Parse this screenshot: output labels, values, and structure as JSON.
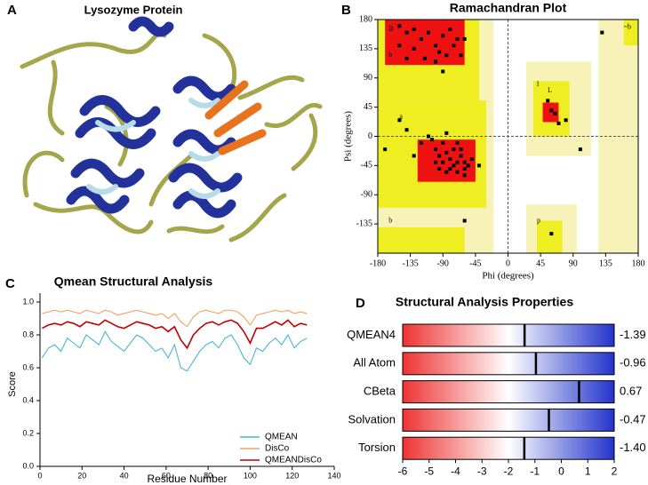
{
  "panel_labels": [
    "A",
    "B",
    "C",
    "D"
  ],
  "image_title": "Lysozyme Protein",
  "chart_data": [
    {
      "type": "scatter",
      "title": "Ramachandran Plot",
      "xlabel": "Phi (degrees)",
      "ylabel": "Psi (degrees)",
      "xlim": [
        -180,
        180
      ],
      "ylim": [
        -180,
        180
      ],
      "xticks": [
        -180,
        -135,
        -90,
        -45,
        0,
        45,
        90,
        135,
        180
      ],
      "yticks": [
        -135,
        -90,
        -45,
        0,
        45,
        90,
        135,
        180
      ],
      "region_labels": [
        "B",
        "b",
        "a",
        "L",
        "l",
        "p",
        "b",
        "~b"
      ],
      "color": "#000000",
      "x": [
        -150,
        -140,
        -130,
        -120,
        -110,
        -100,
        -95,
        -90,
        -85,
        -80,
        -75,
        -70,
        -65,
        -130,
        -115,
        -150,
        -100,
        -60,
        -90,
        -140,
        -100,
        -95,
        -90,
        -85,
        -80,
        -75,
        -70,
        -65,
        -60,
        -90,
        -105,
        -110,
        -80,
        -70,
        -60,
        -55,
        -65,
        -75,
        -85,
        -95,
        -100,
        -120,
        -50,
        -60,
        -70,
        -85,
        -130,
        -140,
        -150,
        -40,
        60,
        65,
        70,
        80,
        55,
        100,
        -170,
        -60,
        60,
        130
      ],
      "y": [
        170,
        160,
        165,
        150,
        160,
        140,
        130,
        155,
        125,
        165,
        140,
        150,
        125,
        135,
        120,
        140,
        115,
        150,
        100,
        120,
        -20,
        -30,
        -40,
        -25,
        -35,
        -45,
        -40,
        -30,
        -40,
        -10,
        -5,
        0,
        -50,
        -55,
        -50,
        -45,
        -20,
        -20,
        -55,
        -50,
        -40,
        -10,
        -35,
        -60,
        -10,
        5,
        -30,
        10,
        25,
        -45,
        40,
        35,
        20,
        25,
        55,
        -20,
        -20,
        -130,
        -150,
        160
      ]
    },
    {
      "type": "line",
      "title": "Qmean  Structural Analysis",
      "xlabel": "Residue Number",
      "ylabel": "Score",
      "xlim": [
        0,
        140
      ],
      "ylim": [
        0,
        1
      ],
      "xticks": [
        0,
        20,
        40,
        60,
        80,
        100,
        120,
        140
      ],
      "yticks": [
        {
          "value": 0,
          "label": "0.0"
        },
        0.2,
        0.4,
        0.6,
        0.8,
        {
          "value": 1,
          "label": "1.0"
        }
      ],
      "x": [
        1,
        4,
        7,
        10,
        13,
        16,
        19,
        22,
        25,
        28,
        31,
        34,
        37,
        40,
        43,
        46,
        49,
        52,
        55,
        58,
        61,
        64,
        67,
        70,
        73,
        76,
        79,
        82,
        85,
        88,
        91,
        94,
        97,
        100,
        103,
        106,
        109,
        112,
        115,
        118,
        121,
        124,
        127
      ],
      "series": [
        {
          "name": "QMEAN",
          "color": "#4bb5d6",
          "values": [
            0.66,
            0.72,
            0.74,
            0.7,
            0.78,
            0.75,
            0.72,
            0.8,
            0.77,
            0.74,
            0.82,
            0.76,
            0.73,
            0.7,
            0.75,
            0.8,
            0.78,
            0.74,
            0.7,
            0.72,
            0.66,
            0.74,
            0.6,
            0.58,
            0.64,
            0.7,
            0.74,
            0.76,
            0.72,
            0.78,
            0.8,
            0.74,
            0.66,
            0.62,
            0.72,
            0.7,
            0.75,
            0.78,
            0.74,
            0.8,
            0.72,
            0.76,
            0.78
          ]
        },
        {
          "name": "DisCo",
          "color": "#f2a25a",
          "values": [
            0.93,
            0.94,
            0.95,
            0.94,
            0.95,
            0.94,
            0.93,
            0.95,
            0.94,
            0.93,
            0.95,
            0.94,
            0.92,
            0.93,
            0.94,
            0.95,
            0.94,
            0.93,
            0.92,
            0.93,
            0.9,
            0.93,
            0.88,
            0.85,
            0.91,
            0.94,
            0.95,
            0.94,
            0.93,
            0.95,
            0.95,
            0.94,
            0.91,
            0.86,
            0.92,
            0.93,
            0.94,
            0.95,
            0.94,
            0.95,
            0.93,
            0.94,
            0.93
          ]
        },
        {
          "name": "QMEANDisCo",
          "color": "#c00000",
          "values": [
            0.84,
            0.86,
            0.87,
            0.86,
            0.88,
            0.87,
            0.85,
            0.88,
            0.87,
            0.86,
            0.89,
            0.87,
            0.85,
            0.84,
            0.86,
            0.88,
            0.87,
            0.86,
            0.84,
            0.85,
            0.82,
            0.85,
            0.77,
            0.72,
            0.8,
            0.84,
            0.87,
            0.88,
            0.86,
            0.88,
            0.89,
            0.87,
            0.82,
            0.75,
            0.84,
            0.84,
            0.86,
            0.88,
            0.86,
            0.89,
            0.85,
            0.87,
            0.86
          ]
        }
      ]
    },
    {
      "type": "hbar",
      "title": "Structural Analysis Properties",
      "categories": [
        "QMEAN4",
        "All Atom",
        "CBeta",
        "Solvation",
        "Torsion"
      ],
      "values": [
        -1.39,
        -0.96,
        0.67,
        -0.47,
        -1.4
      ],
      "value_labels": [
        "-1.39",
        "-0.96",
        "0.67",
        "-0.47",
        "-1.40"
      ],
      "xlim": [
        -6,
        2
      ],
      "xticks": [
        -6,
        -5,
        -4,
        -3,
        -2,
        -1,
        0,
        1,
        2
      ],
      "colors": [
        "#ee3333",
        "#ffffff",
        "#2233cc"
      ]
    }
  ]
}
